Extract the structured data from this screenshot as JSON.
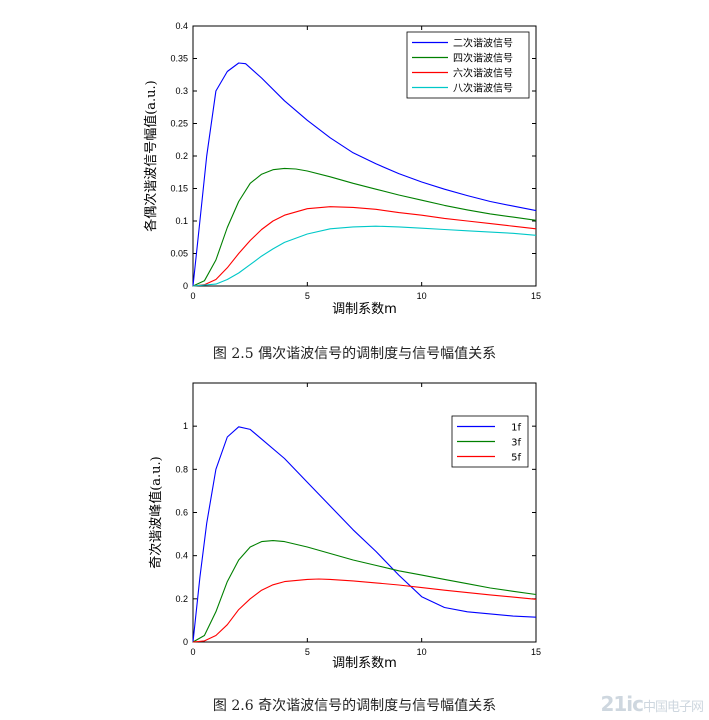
{
  "chart_data": [
    {
      "type": "line",
      "xlabel": "调制系数m",
      "ylabel": "各偶次谐波信号幅值(a.u.)",
      "xlim": [
        0,
        15
      ],
      "ylim": [
        0,
        0.4
      ],
      "xticks": [
        "0",
        "5",
        "10",
        "15"
      ],
      "yticks": [
        "0",
        "0.05",
        "0.1",
        "0.15",
        "0.2",
        "0.25",
        "0.3",
        "0.35",
        "0.4"
      ],
      "grid": false,
      "legend": "top-right",
      "series": [
        {
          "name": "二次谐波信号",
          "color": "#0000ff",
          "x": [
            0,
            0.3,
            0.6,
            1,
            1.5,
            2,
            2.3,
            3,
            4,
            5,
            6,
            7,
            8,
            9,
            10,
            11,
            12,
            13,
            14,
            15
          ],
          "y": [
            0,
            0.1,
            0.2,
            0.3,
            0.33,
            0.343,
            0.342,
            0.32,
            0.285,
            0.255,
            0.228,
            0.205,
            0.188,
            0.173,
            0.16,
            0.149,
            0.139,
            0.13,
            0.123,
            0.116
          ]
        },
        {
          "name": "四次谐波信号",
          "color": "#008000",
          "x": [
            0,
            0.5,
            1,
            1.5,
            2,
            2.5,
            3,
            3.5,
            4,
            4.5,
            5,
            6,
            7,
            8,
            9,
            10,
            11,
            12,
            13,
            14,
            15
          ],
          "y": [
            0,
            0.008,
            0.04,
            0.09,
            0.13,
            0.158,
            0.172,
            0.179,
            0.181,
            0.18,
            0.177,
            0.168,
            0.158,
            0.149,
            0.14,
            0.132,
            0.124,
            0.117,
            0.111,
            0.106,
            0.101
          ]
        },
        {
          "name": "六次谐波信号",
          "color": "#ff0000",
          "x": [
            0,
            0.5,
            1,
            1.5,
            2,
            2.5,
            3,
            3.5,
            4,
            5,
            6,
            7,
            8,
            9,
            10,
            11,
            12,
            13,
            14,
            15
          ],
          "y": [
            0,
            0.002,
            0.01,
            0.028,
            0.05,
            0.07,
            0.087,
            0.1,
            0.109,
            0.119,
            0.122,
            0.121,
            0.118,
            0.113,
            0.109,
            0.104,
            0.1,
            0.096,
            0.092,
            0.088
          ]
        },
        {
          "name": "八次谐波信号",
          "color": "#00c8c8",
          "x": [
            0,
            1,
            1.5,
            2,
            2.5,
            3,
            3.5,
            4,
            5,
            6,
            7,
            8,
            9,
            10,
            11,
            12,
            13,
            14,
            15
          ],
          "y": [
            0,
            0.003,
            0.01,
            0.02,
            0.033,
            0.046,
            0.057,
            0.067,
            0.08,
            0.088,
            0.091,
            0.092,
            0.091,
            0.089,
            0.087,
            0.085,
            0.083,
            0.081,
            0.078
          ]
        }
      ]
    },
    {
      "type": "line",
      "xlabel": "调制系数m",
      "ylabel": "奇次谐波峰值(a.u.)",
      "xlim": [
        0,
        15
      ],
      "ylim": [
        0,
        1.2
      ],
      "xticks": [
        "0",
        "5",
        "10",
        "15"
      ],
      "yticks": [
        "0",
        "0.2",
        "0.4",
        "0.6",
        "0.8",
        "1"
      ],
      "grid": false,
      "legend": "top-right",
      "series": [
        {
          "name": "1f",
          "color": "#0000ff",
          "x": [
            0,
            0.3,
            0.6,
            1,
            1.5,
            2,
            2.5,
            3,
            4,
            5,
            6,
            7,
            8,
            9,
            10,
            11,
            12,
            13,
            14,
            15
          ],
          "y": [
            0,
            0.3,
            0.55,
            0.8,
            0.95,
            0.997,
            0.985,
            0.94,
            0.85,
            0.74,
            0.63,
            0.52,
            0.42,
            0.31,
            0.21,
            0.16,
            0.14,
            0.13,
            0.12,
            0.115
          ]
        },
        {
          "name": "3f",
          "color": "#008000",
          "x": [
            0,
            0.5,
            1,
            1.5,
            2,
            2.5,
            3,
            3.5,
            4,
            5,
            6,
            7,
            8,
            9,
            10,
            11,
            12,
            13,
            14,
            15
          ],
          "y": [
            0,
            0.03,
            0.14,
            0.28,
            0.38,
            0.44,
            0.465,
            0.47,
            0.465,
            0.44,
            0.41,
            0.38,
            0.355,
            0.33,
            0.31,
            0.29,
            0.27,
            0.25,
            0.235,
            0.22
          ]
        },
        {
          "name": "5f",
          "color": "#ff0000",
          "x": [
            0,
            0.5,
            1,
            1.5,
            2,
            2.5,
            3,
            3.5,
            4,
            5,
            5.5,
            6,
            7,
            8,
            9,
            10,
            11,
            12,
            13,
            14,
            15
          ],
          "y": [
            0,
            0.005,
            0.03,
            0.08,
            0.15,
            0.2,
            0.24,
            0.265,
            0.28,
            0.29,
            0.292,
            0.29,
            0.283,
            0.274,
            0.264,
            0.252,
            0.24,
            0.229,
            0.218,
            0.208,
            0.198
          ]
        }
      ]
    }
  ],
  "captions": {
    "fig1": "图 2.5 偶次谐波信号的调制度与信号幅值关系",
    "fig2": "图 2.6 奇次谐波信号的调制度与信号幅值关系"
  },
  "watermark": {
    "main": "21ic",
    "sub": "中国电子网"
  }
}
